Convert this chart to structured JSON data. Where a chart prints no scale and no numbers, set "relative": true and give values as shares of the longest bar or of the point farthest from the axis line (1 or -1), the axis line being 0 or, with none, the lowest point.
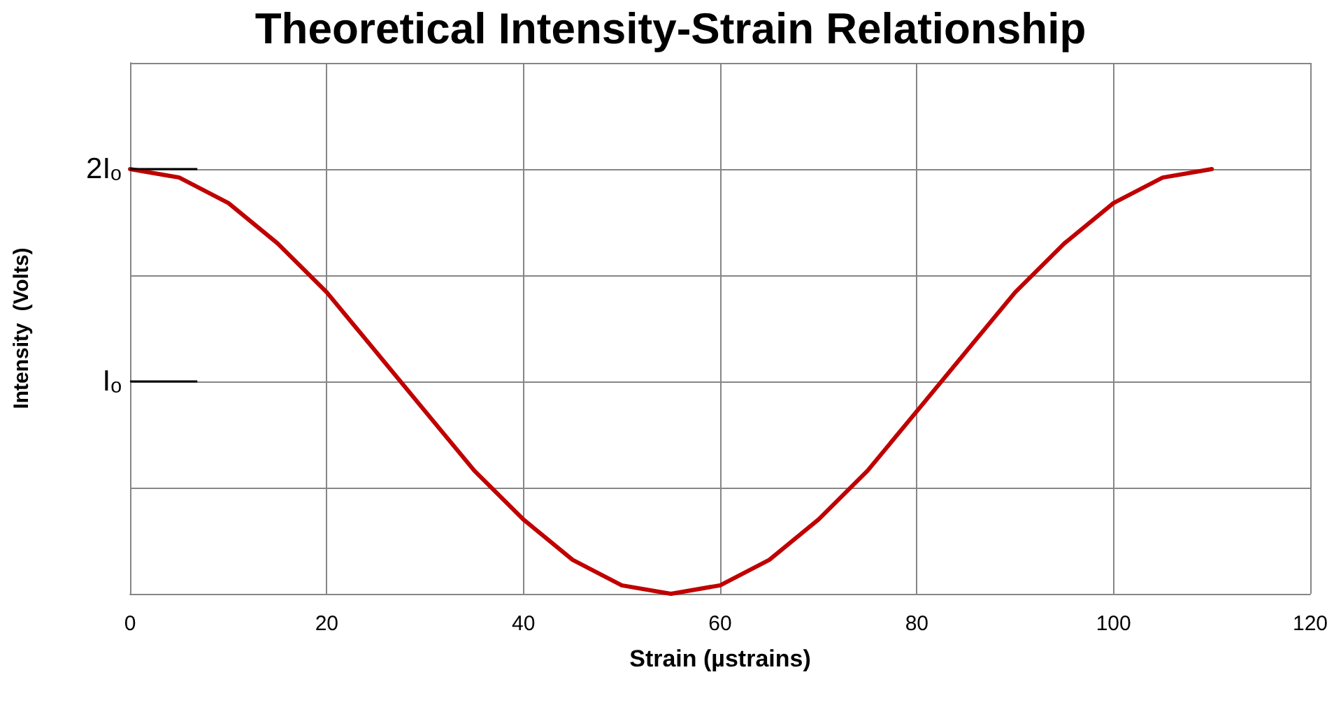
{
  "chart_data": {
    "type": "line",
    "title": "Theoretical Intensity-Strain Relationship",
    "xlabel": "Strain (µstrains)",
    "ylabel": "Intensity  (Volts)",
    "relative": true,
    "x": [
      0,
      5,
      10,
      15,
      20,
      25,
      30,
      35,
      40,
      45,
      50,
      55,
      60,
      65,
      70,
      75,
      80,
      85,
      90,
      95,
      100,
      105,
      110
    ],
    "series": [
      {
        "color": "#c00000",
        "values": [
          1,
          0.98,
          0.92,
          0.825,
          0.71,
          0.57,
          0.43,
          0.29,
          0.175,
          0.08,
          0.02,
          0,
          0.02,
          0.08,
          0.175,
          0.29,
          0.43,
          0.57,
          0.71,
          0.825,
          0.92,
          0.98,
          1
        ]
      }
    ],
    "xlim": [
      0,
      120
    ],
    "xticks": [
      0,
      20,
      40,
      60,
      80,
      100,
      120
    ],
    "ref_lines": [
      {
        "axis": "y",
        "value": 1,
        "label": "2Iₒ"
      },
      {
        "axis": "y",
        "value": 0.5,
        "label": "Iₒ"
      }
    ],
    "grid": true,
    "marker": "none",
    "line_style": "solid"
  }
}
